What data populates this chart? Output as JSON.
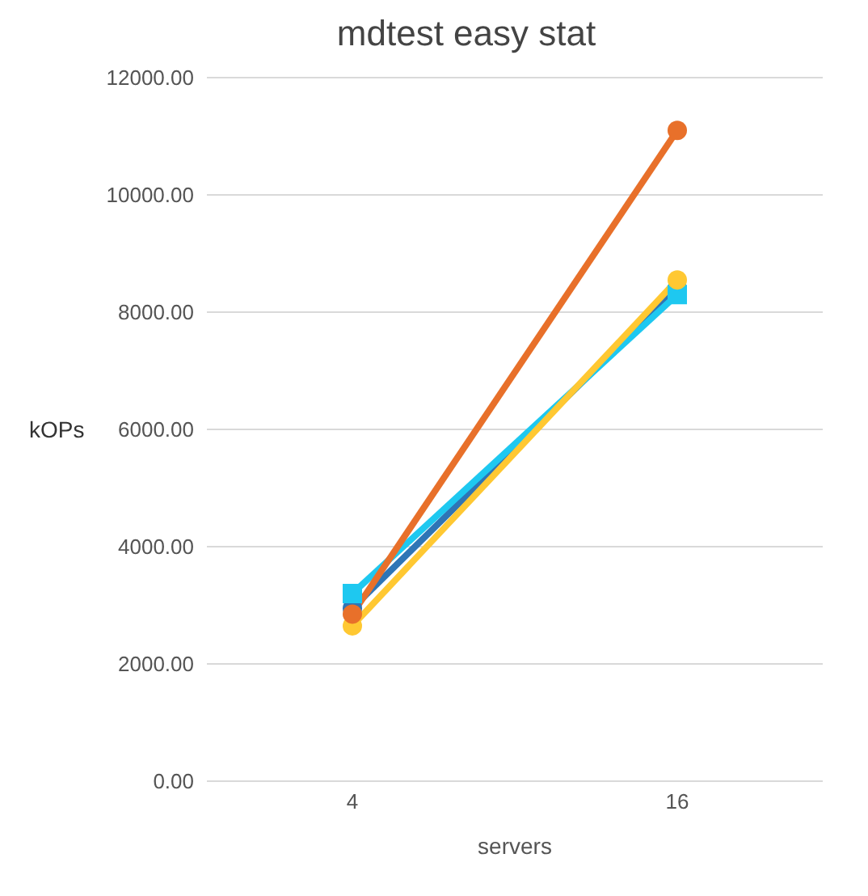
{
  "chart_data": {
    "type": "line",
    "title": "mdtest easy stat",
    "xlabel": "servers",
    "ylabel": "kOPs",
    "categories": [
      "4",
      "16"
    ],
    "series": [
      {
        "color": "#2e75b6",
        "values": [
          2950,
          8400
        ],
        "marker": "circle"
      },
      {
        "color": "#1ec8f0",
        "values": [
          3200,
          8300
        ],
        "marker": "square"
      },
      {
        "color": "#ffc832",
        "values": [
          2650,
          8550
        ],
        "marker": "circle"
      },
      {
        "color": "#e8702a",
        "values": [
          2850,
          11100
        ],
        "marker": "circle"
      }
    ],
    "ylim": [
      0,
      12000
    ],
    "yticks": [
      {
        "value": 0,
        "label": "0.00"
      },
      {
        "value": 2000,
        "label": "2000.00"
      },
      {
        "value": 4000,
        "label": "4000.00"
      },
      {
        "value": 6000,
        "label": "6000.00"
      },
      {
        "value": 8000,
        "label": "8000.00"
      },
      {
        "value": 10000,
        "label": "10000.00"
      },
      {
        "value": 12000,
        "label": "12000.00"
      }
    ],
    "grid": "y"
  }
}
